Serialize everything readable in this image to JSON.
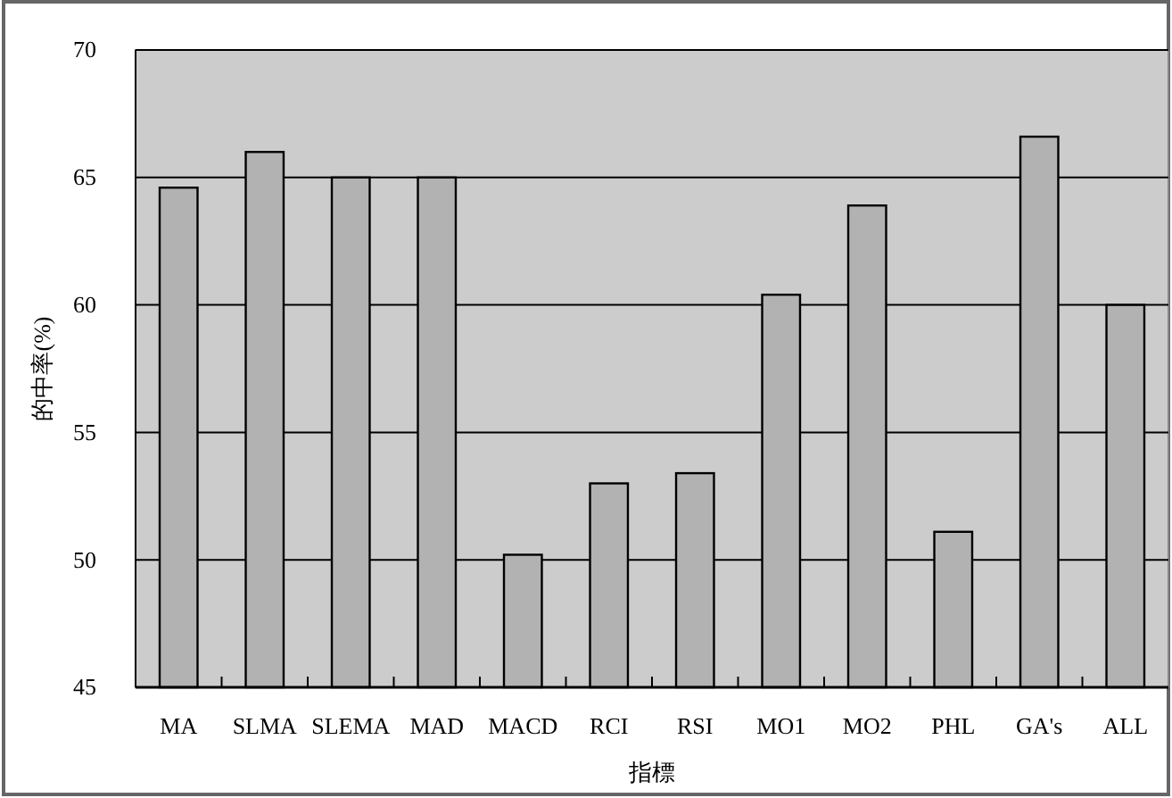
{
  "chart_data": {
    "type": "bar",
    "xlabel": "指標",
    "ylabel": "的中率(%)",
    "categories": [
      "MA",
      "SLMA",
      "SLEMA",
      "MAD",
      "MACD",
      "RCI",
      "RSI",
      "MO1",
      "MO2",
      "PHL",
      "GA's",
      "ALL"
    ],
    "values": [
      64.6,
      66.0,
      65.0,
      65.0,
      50.2,
      53.0,
      53.4,
      60.4,
      63.9,
      51.1,
      66.6,
      60.0
    ],
    "color": "#b2b2b2",
    "ylim": [
      45,
      70
    ],
    "yticks": [
      45,
      50,
      55,
      60,
      65,
      70
    ],
    "grid": "y"
  }
}
